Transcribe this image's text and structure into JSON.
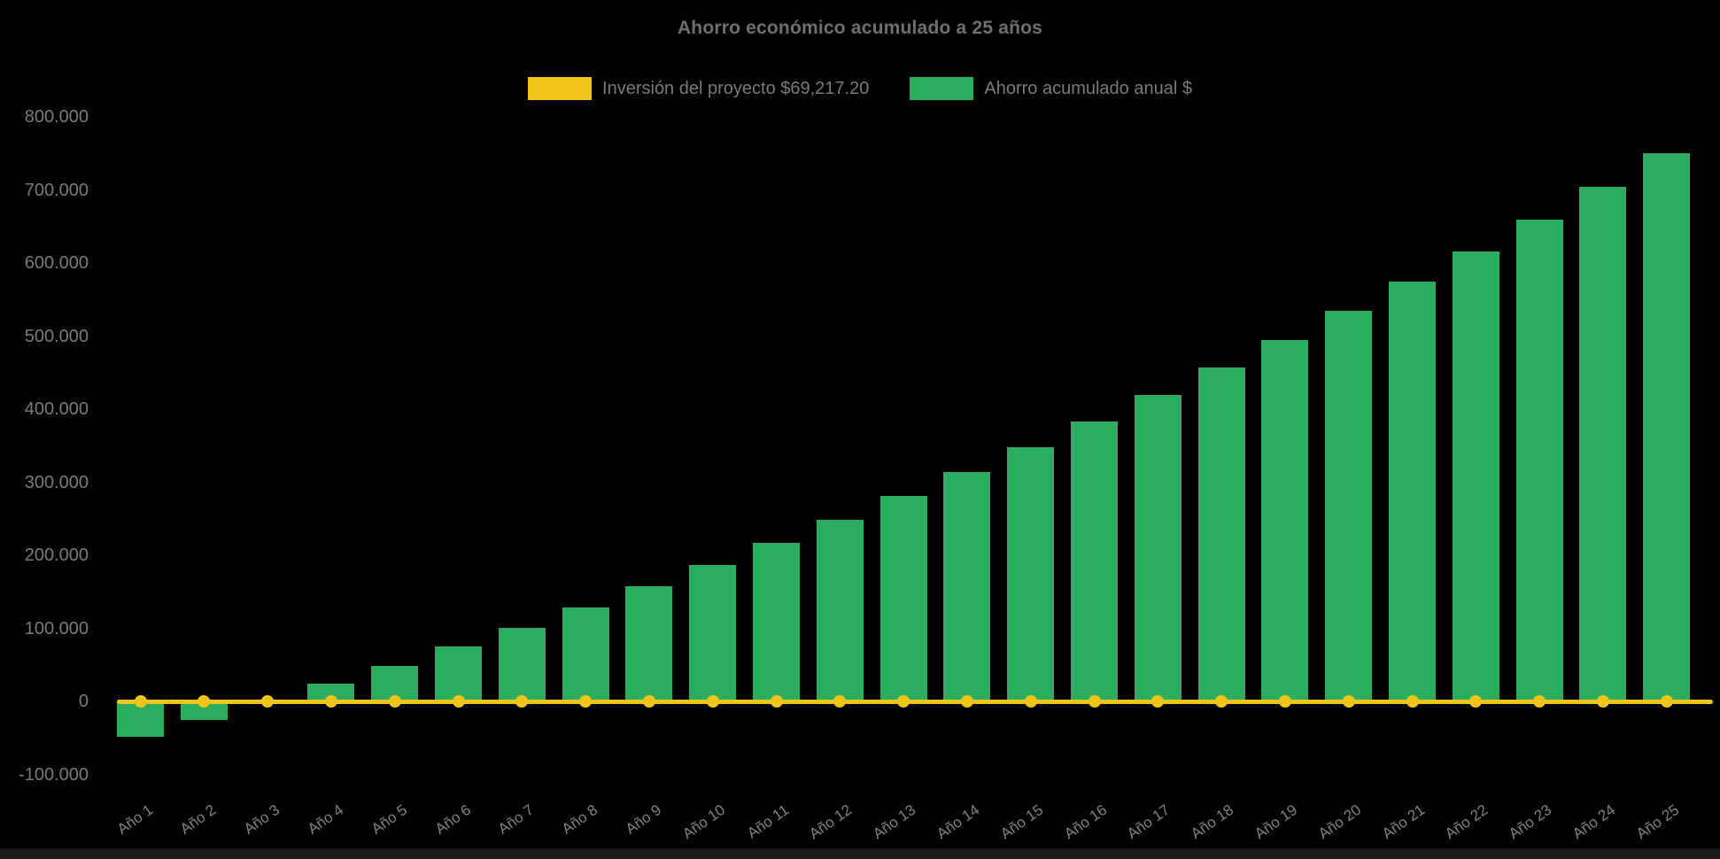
{
  "title": "Ahorro económico acumulado a 25 años",
  "legend": [
    {
      "label": "Inversión del proyecto $69,217.20",
      "color": "#f0c419"
    },
    {
      "label": "Ahorro acumulado anual $",
      "color": "#2bad60"
    }
  ],
  "chart_data": {
    "type": "bar",
    "title": "Ahorro económico acumulado a 25 años",
    "categories": [
      "Año 1",
      "Año 2",
      "Año 3",
      "Año 4",
      "Año 5",
      "Año 6",
      "Año 7",
      "Año 8",
      "Año 9",
      "Año 10",
      "Año 11",
      "Año 12",
      "Año 13",
      "Año 14",
      "Año 15",
      "Año 16",
      "Año 17",
      "Año 18",
      "Año 19",
      "Año 20",
      "Año 21",
      "Año 22",
      "Año 23",
      "Año 24",
      "Año 25"
    ],
    "series": [
      {
        "name": "Ahorro acumulado anual $",
        "type": "bar",
        "color": "#2bad60",
        "values": [
          -48000,
          -25000,
          -1000,
          24000,
          49000,
          75000,
          101000,
          128000,
          157000,
          187000,
          217000,
          249000,
          281000,
          314000,
          348000,
          383000,
          420000,
          457000,
          494000,
          534000,
          574000,
          616000,
          660000,
          704000,
          750000
        ]
      },
      {
        "name": "Inversión del proyecto $69,217.20",
        "type": "line",
        "color": "#f0c419",
        "value_label": 69217.2,
        "plotted_y_value": 0,
        "marker": "circle"
      }
    ],
    "ylim": [
      -100000,
      800000
    ],
    "ytick_step": 100000,
    "ytick_labels": [
      "800.000",
      "700.000",
      "600.000",
      "500.000",
      "400.000",
      "300.000",
      "200.000",
      "100.000",
      "0",
      "-100.000"
    ],
    "xlabel": "",
    "ylabel": "",
    "grid": false,
    "legend_position": "top-center",
    "background": "#000000",
    "text_color": "#7a7a7a"
  }
}
